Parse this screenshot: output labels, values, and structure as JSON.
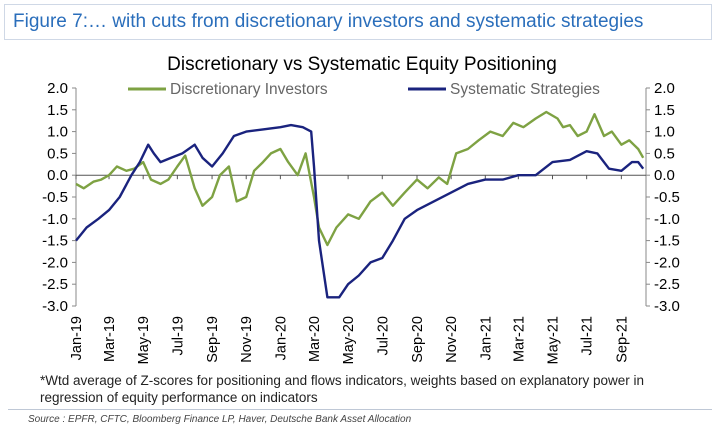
{
  "header": {
    "figure_title": "Figure 7:… with cuts from discretionary investors and systematic strategies"
  },
  "footnote": "*Wtd average of Z-scores for positioning and flows indicators, weights based on explanatory power in regression of equity performance on indicators",
  "source": "Source : EPFR, CFTC, Bloomberg Finance LP, Haver, Deutsche Bank Asset Allocation",
  "colors": {
    "discretionary": "#7ea243",
    "systematic": "#1a237e"
  },
  "chart_data": {
    "type": "line",
    "title": "Discretionary vs Systematic Equity Positioning",
    "xlabel": "",
    "ylabel": "",
    "ylim": [
      -3.0,
      2.0
    ],
    "yticks": [
      "2.0",
      "1.5",
      "1.0",
      "0.5",
      "0.0",
      "-0.5",
      "-1.0",
      "-1.5",
      "-2.0",
      "-2.5",
      "-3.0"
    ],
    "xticks": [
      "Jan-19",
      "Mar-19",
      "May-19",
      "Jul-19",
      "Sep-19",
      "Nov-19",
      "Jan-20",
      "Mar-20",
      "May-20",
      "Jul-20",
      "Sep-20",
      "Nov-20",
      "Jan-21",
      "Mar-21",
      "May-21",
      "Jul-21",
      "Sep-21"
    ],
    "x_range": [
      "2019-01-01",
      "2021-10-15"
    ],
    "legend": "top",
    "series": [
      {
        "name": "Discretionary Investors",
        "points": [
          [
            "2019-01-01",
            -0.2
          ],
          [
            "2019-01-15",
            -0.3
          ],
          [
            "2019-02-01",
            -0.15
          ],
          [
            "2019-02-15",
            -0.1
          ],
          [
            "2019-03-01",
            0.0
          ],
          [
            "2019-03-15",
            0.2
          ],
          [
            "2019-04-01",
            0.1
          ],
          [
            "2019-04-15",
            0.15
          ],
          [
            "2019-05-01",
            0.3
          ],
          [
            "2019-05-15",
            -0.1
          ],
          [
            "2019-06-01",
            -0.2
          ],
          [
            "2019-06-15",
            -0.1
          ],
          [
            "2019-07-01",
            0.2
          ],
          [
            "2019-07-15",
            0.45
          ],
          [
            "2019-08-01",
            -0.3
          ],
          [
            "2019-08-15",
            -0.7
          ],
          [
            "2019-09-01",
            -0.5
          ],
          [
            "2019-09-15",
            0.0
          ],
          [
            "2019-10-01",
            0.2
          ],
          [
            "2019-10-15",
            -0.6
          ],
          [
            "2019-11-01",
            -0.5
          ],
          [
            "2019-11-15",
            0.1
          ],
          [
            "2019-12-01",
            0.3
          ],
          [
            "2019-12-15",
            0.5
          ],
          [
            "2020-01-01",
            0.6
          ],
          [
            "2020-01-15",
            0.3
          ],
          [
            "2020-02-01",
            0.0
          ],
          [
            "2020-02-15",
            0.5
          ],
          [
            "2020-03-01",
            -0.5
          ],
          [
            "2020-03-10",
            -1.2
          ],
          [
            "2020-03-25",
            -1.6
          ],
          [
            "2020-04-10",
            -1.2
          ],
          [
            "2020-05-01",
            -0.9
          ],
          [
            "2020-05-20",
            -1.0
          ],
          [
            "2020-06-10",
            -0.6
          ],
          [
            "2020-07-01",
            -0.4
          ],
          [
            "2020-07-20",
            -0.7
          ],
          [
            "2020-08-10",
            -0.4
          ],
          [
            "2020-09-01",
            -0.1
          ],
          [
            "2020-09-20",
            -0.3
          ],
          [
            "2020-10-10",
            -0.05
          ],
          [
            "2020-10-25",
            -0.2
          ],
          [
            "2020-11-10",
            0.5
          ],
          [
            "2020-12-01",
            0.6
          ],
          [
            "2020-12-20",
            0.8
          ],
          [
            "2021-01-10",
            1.0
          ],
          [
            "2021-02-01",
            0.9
          ],
          [
            "2021-02-20",
            1.2
          ],
          [
            "2021-03-10",
            1.1
          ],
          [
            "2021-04-01",
            1.3
          ],
          [
            "2021-04-20",
            1.45
          ],
          [
            "2021-05-10",
            1.3
          ],
          [
            "2021-05-20",
            1.1
          ],
          [
            "2021-06-01",
            1.15
          ],
          [
            "2021-06-15",
            0.9
          ],
          [
            "2021-07-01",
            1.0
          ],
          [
            "2021-07-15",
            1.4
          ],
          [
            "2021-08-01",
            0.9
          ],
          [
            "2021-08-15",
            1.0
          ],
          [
            "2021-09-01",
            0.7
          ],
          [
            "2021-09-15",
            0.8
          ],
          [
            "2021-10-01",
            0.6
          ],
          [
            "2021-10-10",
            0.4
          ]
        ]
      },
      {
        "name": "Systematic Strategies",
        "points": [
          [
            "2019-01-01",
            -1.5
          ],
          [
            "2019-01-20",
            -1.2
          ],
          [
            "2019-02-10",
            -1.0
          ],
          [
            "2019-03-01",
            -0.8
          ],
          [
            "2019-03-20",
            -0.5
          ],
          [
            "2019-04-10",
            0.0
          ],
          [
            "2019-04-25",
            0.3
          ],
          [
            "2019-05-10",
            0.7
          ],
          [
            "2019-05-20",
            0.5
          ],
          [
            "2019-06-01",
            0.3
          ],
          [
            "2019-06-20",
            0.4
          ],
          [
            "2019-07-10",
            0.5
          ],
          [
            "2019-08-01",
            0.7
          ],
          [
            "2019-08-15",
            0.4
          ],
          [
            "2019-09-01",
            0.2
          ],
          [
            "2019-09-20",
            0.5
          ],
          [
            "2019-10-10",
            0.9
          ],
          [
            "2019-11-01",
            1.0
          ],
          [
            "2019-12-01",
            1.05
          ],
          [
            "2020-01-01",
            1.1
          ],
          [
            "2020-01-20",
            1.15
          ],
          [
            "2020-02-10",
            1.1
          ],
          [
            "2020-02-25",
            1.0
          ],
          [
            "2020-03-01",
            0.2
          ],
          [
            "2020-03-10",
            -1.5
          ],
          [
            "2020-03-25",
            -2.8
          ],
          [
            "2020-04-15",
            -2.8
          ],
          [
            "2020-05-01",
            -2.5
          ],
          [
            "2020-05-20",
            -2.3
          ],
          [
            "2020-06-10",
            -2.0
          ],
          [
            "2020-07-01",
            -1.9
          ],
          [
            "2020-07-20",
            -1.5
          ],
          [
            "2020-08-10",
            -1.0
          ],
          [
            "2020-09-01",
            -0.8
          ],
          [
            "2020-10-01",
            -0.6
          ],
          [
            "2020-11-01",
            -0.4
          ],
          [
            "2020-12-01",
            -0.2
          ],
          [
            "2021-01-01",
            -0.1
          ],
          [
            "2021-02-01",
            -0.1
          ],
          [
            "2021-03-01",
            0.0
          ],
          [
            "2021-04-01",
            0.0
          ],
          [
            "2021-05-01",
            0.3
          ],
          [
            "2021-06-01",
            0.35
          ],
          [
            "2021-07-01",
            0.55
          ],
          [
            "2021-07-20",
            0.5
          ],
          [
            "2021-08-10",
            0.15
          ],
          [
            "2021-09-01",
            0.1
          ],
          [
            "2021-09-20",
            0.3
          ],
          [
            "2021-10-01",
            0.3
          ],
          [
            "2021-10-10",
            0.15
          ]
        ]
      }
    ]
  }
}
